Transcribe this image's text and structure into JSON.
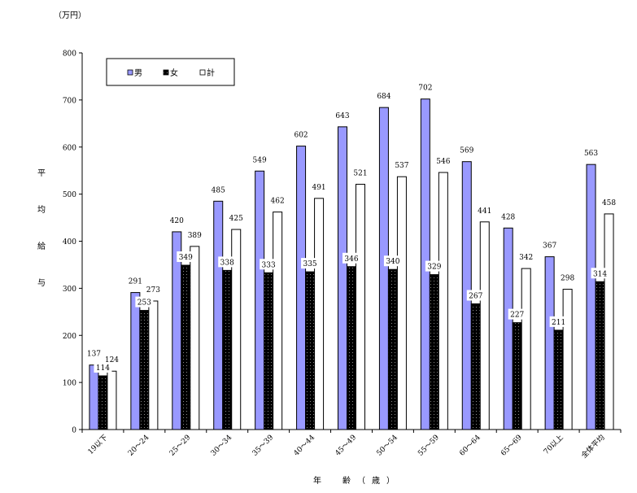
{
  "chart_data": {
    "type": "bar",
    "title": "",
    "unit_label": "（万円）",
    "ylabel": "平均給与",
    "xlabel": "年　齢（歳）",
    "ylim": [
      0,
      800
    ],
    "yticks": [
      0,
      100,
      200,
      300,
      400,
      500,
      600,
      700,
      800
    ],
    "grid": false,
    "legend_position": "top-left",
    "categories": [
      "19以下",
      "20～24",
      "25～29",
      "30～34",
      "35～39",
      "40～44",
      "45～49",
      "50～54",
      "55～59",
      "60～64",
      "65～69",
      "70以上",
      "全体平均"
    ],
    "series": [
      {
        "name": "男",
        "color": "#9999ff",
        "values": [
          137,
          291,
          420,
          485,
          549,
          602,
          643,
          684,
          702,
          569,
          428,
          367,
          563
        ]
      },
      {
        "name": "女",
        "color": "#000000",
        "values": [
          114,
          253,
          349,
          338,
          333,
          335,
          346,
          340,
          329,
          267,
          227,
          211,
          314
        ]
      },
      {
        "name": "計",
        "color": "#ffffff",
        "values": [
          124,
          273,
          389,
          425,
          462,
          491,
          521,
          537,
          546,
          441,
          342,
          298,
          458
        ]
      }
    ]
  }
}
